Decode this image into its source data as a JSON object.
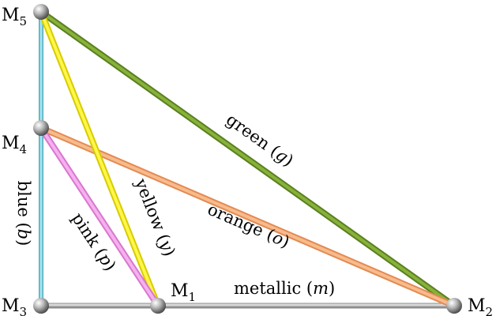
{
  "nodes": [
    {
      "id": "M5",
      "base": "M",
      "sub": "5"
    },
    {
      "id": "M4",
      "base": "M",
      "sub": "4"
    },
    {
      "id": "M3",
      "base": "M",
      "sub": "3"
    },
    {
      "id": "M1",
      "base": "M",
      "sub": "1"
    },
    {
      "id": "M2",
      "base": "M",
      "sub": "2"
    }
  ],
  "edges": [
    {
      "id": "blue",
      "from": "M5",
      "to": "M3",
      "name": "blue",
      "symbol": "b",
      "color": "#7fd6e6"
    },
    {
      "id": "metallic",
      "from": "M3",
      "to": "M2",
      "name": "metallic",
      "symbol": "m",
      "color": "#bdbdbd"
    },
    {
      "id": "green",
      "from": "M5",
      "to": "M2",
      "name": "green",
      "symbol": "g",
      "color": "#6f9a2a"
    },
    {
      "id": "orange",
      "from": "M4",
      "to": "M2",
      "name": "orange",
      "symbol": "o",
      "color": "#f4a46e"
    },
    {
      "id": "yellow",
      "from": "M5",
      "to": "M1",
      "name": "yellow",
      "symbol": "y",
      "color": "#f2ea1a"
    },
    {
      "id": "pink",
      "from": "M4",
      "to": "M1",
      "name": "pink",
      "symbol": "p",
      "color": "#ea8fe1"
    }
  ]
}
